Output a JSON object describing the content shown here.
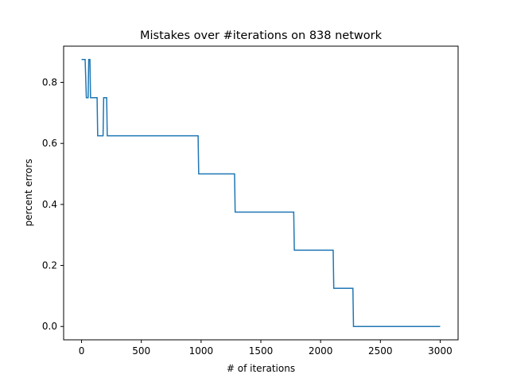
{
  "chart_data": {
    "type": "line",
    "title": "Mistakes over #iterations on 838 network",
    "xlabel": "# of iterations",
    "ylabel": "percent errors",
    "xlim": [
      -150,
      3150
    ],
    "ylim": [
      -0.04375,
      0.91875
    ],
    "xticks": [
      0,
      500,
      1000,
      1500,
      2000,
      2500,
      3000
    ],
    "xtick_labels": [
      "0",
      "500",
      "1000",
      "1500",
      "2000",
      "2500",
      "3000"
    ],
    "yticks": [
      0.0,
      0.2,
      0.4,
      0.6,
      0.8
    ],
    "ytick_labels": [
      "0.0",
      "0.2",
      "0.4",
      "0.6",
      "0.8"
    ],
    "grid": false,
    "series": [
      {
        "color": "#1f77b4",
        "step": true,
        "x": [
          0,
          30,
          40,
          55,
          60,
          70,
          75,
          130,
          135,
          180,
          185,
          210,
          215,
          975,
          980,
          1280,
          1285,
          1775,
          1780,
          2105,
          2110,
          2270,
          2275,
          3000
        ],
        "y": [
          0.875,
          0.875,
          0.75,
          0.75,
          0.875,
          0.875,
          0.75,
          0.75,
          0.625,
          0.625,
          0.75,
          0.75,
          0.625,
          0.625,
          0.5,
          0.5,
          0.375,
          0.375,
          0.25,
          0.25,
          0.125,
          0.125,
          0.0,
          0.0
        ]
      }
    ]
  }
}
